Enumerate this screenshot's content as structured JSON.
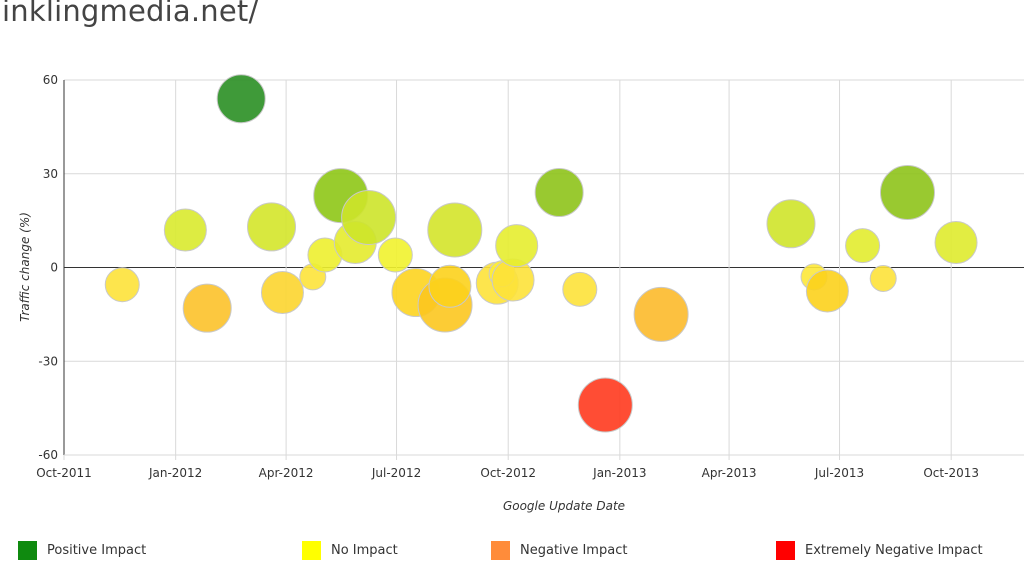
{
  "header": {
    "site_title": "inklingmedia.net/"
  },
  "chart_data": {
    "type": "scatter",
    "subtype": "bubble",
    "xlabel": "Google Update Date",
    "ylabel": "Traffic change (%)",
    "xlim": [
      "2011-10-01",
      "2013-11-30"
    ],
    "ylim": [
      -60,
      60
    ],
    "y_ticks": [
      60,
      30,
      0,
      -30,
      -60
    ],
    "x_ticks": [
      {
        "date": "2011-10-01",
        "label": "Oct-2011"
      },
      {
        "date": "2012-01-01",
        "label": "Jan-2012"
      },
      {
        "date": "2012-04-01",
        "label": "Apr-2012"
      },
      {
        "date": "2012-07-01",
        "label": "Jul-2012"
      },
      {
        "date": "2012-10-01",
        "label": "Oct-2012"
      },
      {
        "date": "2013-01-01",
        "label": "Jan-2013"
      },
      {
        "date": "2013-04-01",
        "label": "Apr-2013"
      },
      {
        "date": "2013-07-01",
        "label": "Jul-2013"
      },
      {
        "date": "2013-10-01",
        "label": "Oct-2013"
      }
    ],
    "grid": true,
    "legend_position": "bottom",
    "colors": {
      "positive": "#138D13",
      "none": "#FFFF00",
      "negative": "#FF8C33",
      "extreme_negative": "#FF0000"
    },
    "legend": [
      {
        "label": "Positive Impact",
        "color": "#0f8a0f"
      },
      {
        "label": "No Impact",
        "color": "#ffff00"
      },
      {
        "label": "Negative Impact",
        "color": "#ff8c3a"
      },
      {
        "label": "Extremely Negative Impact",
        "color": "#ff0000"
      }
    ],
    "points": [
      {
        "x": "2011-11-18",
        "y": -5.5,
        "size": 3,
        "color": "#fde23a"
      },
      {
        "x": "2012-01-09",
        "y": 12,
        "size": 4,
        "color": "#d9ea2e"
      },
      {
        "x": "2012-01-27",
        "y": -13,
        "size": 5,
        "color": "#fcc22a"
      },
      {
        "x": "2012-02-24",
        "y": 54,
        "size": 5,
        "color": "#2a8f23"
      },
      {
        "x": "2012-03-20",
        "y": 13,
        "size": 5,
        "color": "#d4e52a"
      },
      {
        "x": "2012-03-29",
        "y": -8,
        "size": 4,
        "color": "#fcd52f"
      },
      {
        "x": "2012-04-23",
        "y": -3,
        "size": 2,
        "color": "#fde33a"
      },
      {
        "x": "2012-05-03",
        "y": 4,
        "size": 3,
        "color": "#edf02f"
      },
      {
        "x": "2012-05-16",
        "y": 23,
        "size": 6,
        "color": "#8ec616"
      },
      {
        "x": "2012-05-28",
        "y": 8,
        "size": 4,
        "color": "#e4eb2d"
      },
      {
        "x": "2012-06-08",
        "y": 16,
        "size": 6,
        "color": "#cde42a"
      },
      {
        "x": "2012-06-30",
        "y": 4,
        "size": 3,
        "color": "#f1f22e"
      },
      {
        "x": "2012-07-17",
        "y": -8,
        "size": 5,
        "color": "#fdd41f"
      },
      {
        "x": "2012-08-10",
        "y": -12,
        "size": 6,
        "color": "#fcc71f"
      },
      {
        "x": "2012-08-14",
        "y": -6,
        "size": 4,
        "color": "#fcd21c"
      },
      {
        "x": "2012-08-18",
        "y": 12,
        "size": 6,
        "color": "#d4e42a"
      },
      {
        "x": "2012-09-22",
        "y": -5,
        "size": 4,
        "color": "#fde23a"
      },
      {
        "x": "2012-09-26",
        "y": -2,
        "size": 2,
        "color": "#fdec3a"
      },
      {
        "x": "2012-10-05",
        "y": -4,
        "size": 4,
        "color": "#fde23a"
      },
      {
        "x": "2012-10-08",
        "y": 7,
        "size": 4,
        "color": "#e5ed2f"
      },
      {
        "x": "2012-11-12",
        "y": 24,
        "size": 5,
        "color": "#8ec31a"
      },
      {
        "x": "2012-11-29",
        "y": -7,
        "size": 3,
        "color": "#fde23a"
      },
      {
        "x": "2012-12-20",
        "y": -44,
        "size": 6,
        "color": "#ff3a1e"
      },
      {
        "x": "2013-02-04",
        "y": -15,
        "size": 6,
        "color": "#fcba2b"
      },
      {
        "x": "2013-05-22",
        "y": 14,
        "size": 5,
        "color": "#cfe42a"
      },
      {
        "x": "2013-06-10",
        "y": -3,
        "size": 2,
        "color": "#fde83a"
      },
      {
        "x": "2013-06-21",
        "y": -7.5,
        "size": 4,
        "color": "#fcd21c"
      },
      {
        "x": "2013-07-20",
        "y": 7,
        "size": 3,
        "color": "#e2ec2f"
      },
      {
        "x": "2013-08-06",
        "y": -3.5,
        "size": 2,
        "color": "#fde23a"
      },
      {
        "x": "2013-08-26",
        "y": 24,
        "size": 6,
        "color": "#8ec31a"
      },
      {
        "x": "2013-10-05",
        "y": 8,
        "size": 4,
        "color": "#dfeb2e"
      }
    ]
  }
}
